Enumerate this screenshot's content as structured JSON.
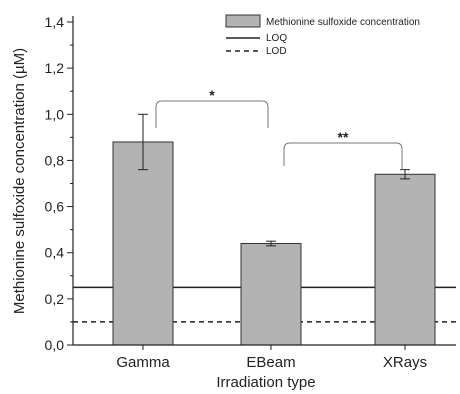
{
  "chart_data": {
    "type": "bar",
    "xlabel": "Irradiation type",
    "ylabel": "Methionine sulfoxide concentration (µM)",
    "categories": [
      "Gamma",
      "EBeam",
      "XRays"
    ],
    "series": [
      {
        "name": "Methionine sulfoxide concentration",
        "values": [
          0.88,
          0.44,
          0.74
        ],
        "errors": [
          0.12,
          0.01,
          0.02
        ],
        "color": "#b3b3b3"
      }
    ],
    "reference_lines": [
      {
        "name": "LOQ",
        "value": 0.25,
        "style": "solid"
      },
      {
        "name": "LOD",
        "value": 0.1,
        "style": "dashed"
      }
    ],
    "significance": [
      {
        "from": "Gamma",
        "to": "EBeam",
        "label": "*"
      },
      {
        "from": "EBeam",
        "to": "XRays",
        "label": "**"
      }
    ],
    "ylim": [
      0,
      1.4
    ],
    "yticks": [
      "0,0",
      "0,2",
      "0,4",
      "0,6",
      "0,8",
      "1,0",
      "1,2",
      "1,4"
    ],
    "ytick_values": [
      0,
      0.2,
      0.4,
      0.6,
      0.8,
      1.0,
      1.2,
      1.4
    ],
    "grid": false,
    "legend_position": "top-right"
  }
}
